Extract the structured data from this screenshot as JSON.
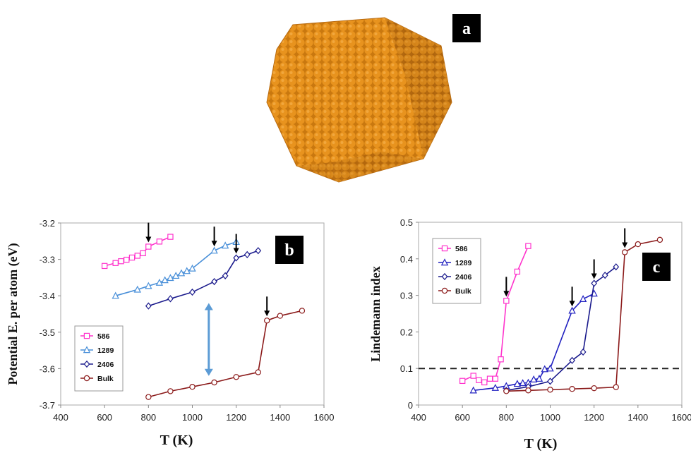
{
  "panels": {
    "a": {
      "label": "a"
    },
    "b": {
      "label": "b"
    },
    "c": {
      "label": "c"
    }
  },
  "chart_data": [
    {
      "type": "line",
      "panel": "b",
      "xlabel": "T (K)",
      "ylabel": "Potential E. per atom (eV)",
      "xlim": [
        400,
        1600
      ],
      "ylim": [
        -3.7,
        -3.2
      ],
      "xticks": [
        400,
        600,
        800,
        1000,
        1200,
        1400,
        1600
      ],
      "yticks": [
        -3.2,
        -3.3,
        -3.4,
        -3.5,
        -3.6,
        -3.7
      ],
      "ytick_labels": [
        "-3.2",
        "-3.3",
        "-3.4",
        "-3.5",
        "-3.6",
        "-3.7"
      ],
      "legend_position": "bottom-left",
      "series": [
        {
          "name": "586",
          "color": "#ff33cc",
          "marker": "square",
          "x": [
            600,
            650,
            675,
            700,
            725,
            750,
            775,
            800,
            850,
            900
          ],
          "y": [
            -3.318,
            -3.31,
            -3.305,
            -3.301,
            -3.295,
            -3.29,
            -3.283,
            -3.265,
            -3.251,
            -3.238
          ]
        },
        {
          "name": "1289",
          "color": "#4a90d9",
          "marker": "triangle",
          "x": [
            650,
            750,
            800,
            850,
            875,
            900,
            925,
            950,
            975,
            1000,
            1100,
            1150,
            1200
          ],
          "y": [
            -3.4,
            -3.383,
            -3.373,
            -3.364,
            -3.357,
            -3.351,
            -3.345,
            -3.338,
            -3.332,
            -3.325,
            -3.276,
            -3.262,
            -3.252
          ]
        },
        {
          "name": "2406",
          "color": "#1a1a8c",
          "marker": "diamond",
          "x": [
            800,
            900,
            1000,
            1100,
            1150,
            1200,
            1250,
            1300
          ],
          "y": [
            -3.428,
            -3.408,
            -3.39,
            -3.361,
            -3.345,
            -3.296,
            -3.287,
            -3.276
          ]
        },
        {
          "name": "Bulk",
          "color": "#8b1a1a",
          "marker": "circle",
          "x": [
            800,
            900,
            1000,
            1100,
            1200,
            1300,
            1340,
            1400,
            1500
          ],
          "y": [
            -3.678,
            -3.662,
            -3.65,
            -3.638,
            -3.623,
            -3.61,
            -3.468,
            -3.455,
            -3.441
          ]
        }
      ],
      "melting_arrows_x": [
        800,
        1100,
        1200,
        1340
      ],
      "melting_arrows_y": [
        -3.265,
        -3.276,
        -3.296,
        -3.468
      ],
      "double_arrow": {
        "x": 1075,
        "y_from": -3.42,
        "y_to": -3.62,
        "color": "#5b9bd5"
      }
    },
    {
      "type": "line",
      "panel": "c",
      "xlabel": "T (K)",
      "ylabel": "Lindemann index",
      "xlim": [
        400,
        1600
      ],
      "ylim": [
        0,
        0.5
      ],
      "xticks": [
        400,
        600,
        800,
        1000,
        1200,
        1400,
        1600
      ],
      "yticks": [
        0,
        0.1,
        0.2,
        0.3,
        0.4,
        0.5
      ],
      "ytick_labels": [
        "0",
        "0.1",
        "0.2",
        "0.3",
        "0.4",
        "0.5"
      ],
      "legend_position": "top-left",
      "threshold_y": 0.1,
      "series": [
        {
          "name": "586",
          "color": "#ff33cc",
          "marker": "square",
          "x": [
            600,
            650,
            675,
            700,
            725,
            750,
            775,
            800,
            850,
            900
          ],
          "y": [
            0.066,
            0.08,
            0.068,
            0.062,
            0.072,
            0.072,
            0.125,
            0.285,
            0.365,
            0.435
          ]
        },
        {
          "name": "1289",
          "color": "#2020c0",
          "marker": "triangle",
          "x": [
            650,
            750,
            800,
            850,
            875,
            900,
            925,
            950,
            975,
            1000,
            1100,
            1150,
            1200
          ],
          "y": [
            0.04,
            0.047,
            0.052,
            0.058,
            0.06,
            0.061,
            0.07,
            0.072,
            0.098,
            0.1,
            0.258,
            0.29,
            0.305
          ]
        },
        {
          "name": "2406",
          "color": "#1a1a8c",
          "marker": "diamond",
          "x": [
            800,
            900,
            1000,
            1100,
            1150,
            1200,
            1250,
            1300
          ],
          "y": [
            0.04,
            0.05,
            0.065,
            0.122,
            0.145,
            0.333,
            0.355,
            0.378
          ]
        },
        {
          "name": "Bulk",
          "color": "#8b1a1a",
          "marker": "circle",
          "x": [
            800,
            900,
            1000,
            1100,
            1200,
            1300,
            1340,
            1400,
            1500
          ],
          "y": [
            0.038,
            0.04,
            0.042,
            0.044,
            0.046,
            0.049,
            0.418,
            0.44,
            0.452
          ]
        }
      ],
      "melting_arrows_x": [
        800,
        1100,
        1200,
        1340
      ],
      "melting_arrows_y": [
        0.285,
        0.258,
        0.333,
        0.418
      ]
    }
  ],
  "colors": {
    "cluster_fill": "#e8931e",
    "cluster_shadow": "#b86a10",
    "panel_label_bg": "#000000"
  }
}
